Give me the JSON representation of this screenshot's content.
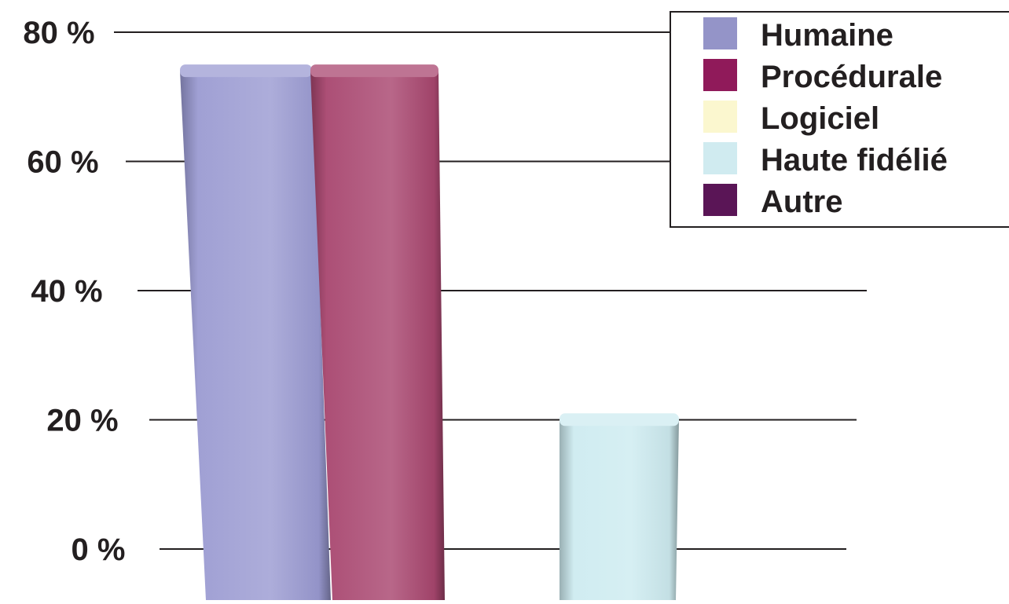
{
  "chart_data": {
    "type": "bar",
    "title": "",
    "xlabel": "",
    "ylabel": "",
    "ylim": [
      0,
      80
    ],
    "y_ticks": [
      "0 %",
      "20 %",
      "40 %",
      "60 %",
      "80 %"
    ],
    "y_tick_values": [
      0,
      20,
      40,
      60,
      80
    ],
    "grid": true,
    "legend_position": "top-right",
    "categories": [
      "Humaine",
      "Procédurale",
      "Logiciel",
      "Haute fidélié",
      "Autre"
    ],
    "values": [
      75,
      75,
      0,
      21,
      0
    ],
    "colors": [
      "#9b9bd2",
      "#a8466f",
      "#fbf7cf",
      "#cdebf0",
      "#5c1753"
    ],
    "legend_colors": [
      "#9494c8",
      "#901a5a",
      "#fbf7cf",
      "#d0ebf0",
      "#5a1556"
    ],
    "legend": [
      "Humaine",
      "Procédurale",
      "Logiciel",
      "Haute fidélié",
      "Autre"
    ]
  }
}
